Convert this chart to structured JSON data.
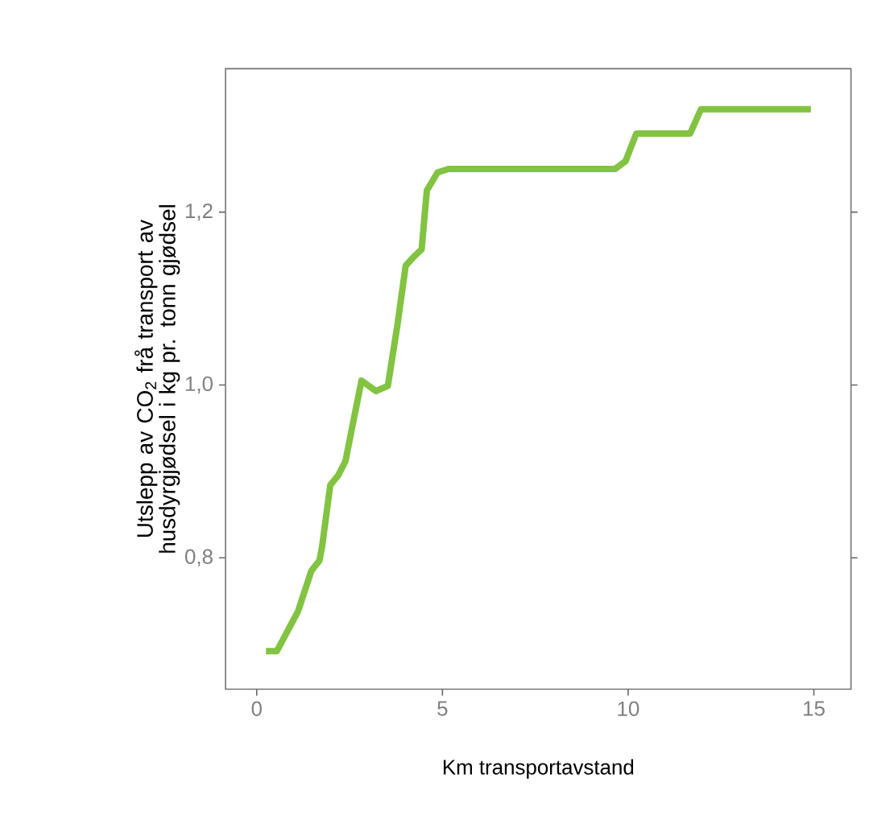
{
  "chart_data": {
    "type": "line",
    "xlabel": "Km transportavstand",
    "ylabel": "Utslepp av CO$_{2}$  frå transport av husdyrgjødsel i kg pr. tonn gjødsel",
    "x": [
      0.25,
      0.54,
      1.11,
      1.47,
      1.69,
      1.76,
      1.98,
      2.2,
      2.39,
      2.56,
      2.82,
      3.21,
      3.53,
      3.79,
      4.01,
      4.22,
      4.44,
      4.58,
      4.87,
      5.16,
      9.65,
      9.93,
      10.22,
      11.67,
      11.96,
      14.92
    ],
    "series": [
      {
        "color": "#82c341",
        "values": [
          0.692,
          0.692,
          0.738,
          0.785,
          0.797,
          0.813,
          0.884,
          0.896,
          0.912,
          0.949,
          1.005,
          0.993,
          0.999,
          1.07,
          1.138,
          1.148,
          1.157,
          1.225,
          1.246,
          1.25,
          1.25,
          1.259,
          1.291,
          1.291,
          1.319,
          1.319
        ]
      }
    ],
    "xlim": [
      -0.84,
      16.0
    ],
    "ylim": [
      0.648,
      1.366
    ],
    "xticks": [
      0,
      5,
      10,
      15
    ],
    "yticks": [
      {
        "value": 0.8,
        "label": "0,8"
      },
      {
        "value": 1.0,
        "label": "1,0"
      },
      {
        "value": 1.2,
        "label": "1,2"
      }
    ],
    "grid": false,
    "marker": "none",
    "line_style": "solid"
  }
}
